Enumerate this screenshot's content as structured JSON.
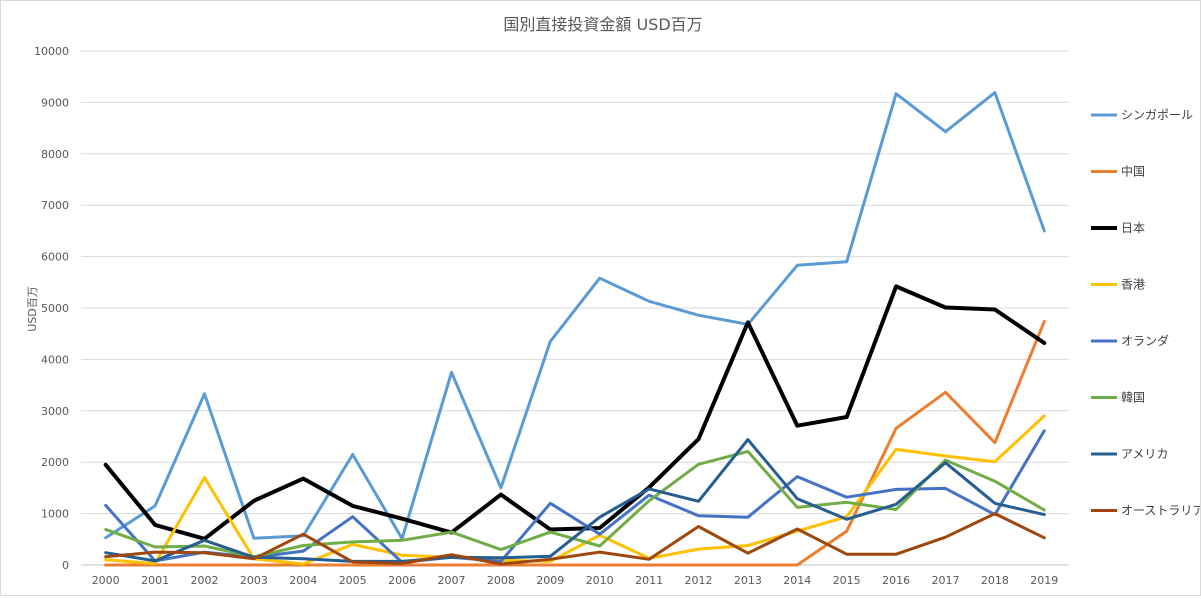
{
  "chart_data": {
    "type": "line",
    "title": "国別直接投資金額 USD百万",
    "xlabel": "",
    "ylabel": "USD百万",
    "ylim": [
      0,
      10000
    ],
    "yticks": [
      "0",
      "1000",
      "2000",
      "3000",
      "4000",
      "5000",
      "6000",
      "7000",
      "8000",
      "9000",
      "10000"
    ],
    "x": [
      "2000",
      "2001",
      "2002",
      "2003",
      "2004",
      "2005",
      "2006",
      "2007",
      "2008",
      "2009",
      "2010",
      "2011",
      "2012",
      "2013",
      "2014",
      "2015",
      "2016",
      "2017",
      "2018",
      "2019"
    ],
    "grid": true,
    "legend_position": "right",
    "series": [
      {
        "name": "シンガポール",
        "color": "#5b9bd5",
        "width": 3,
        "values": [
          530,
          1150,
          3330,
          520,
          570,
          2150,
          510,
          3750,
          1500,
          4350,
          5580,
          5130,
          4860,
          4680,
          5830,
          5900,
          9170,
          8430,
          9190,
          6500
        ]
      },
      {
        "name": "中国",
        "color": "#ed7d31",
        "width": 3,
        "values": [
          0,
          0,
          0,
          0,
          0,
          0,
          0,
          0,
          0,
          0,
          0,
          0,
          0,
          0,
          0,
          660,
          2660,
          3360,
          2380,
          4740
        ]
      },
      {
        "name": "日本",
        "color": "#000000",
        "width": 4,
        "values": [
          1950,
          780,
          510,
          1250,
          1680,
          1150,
          900,
          630,
          1370,
          690,
          720,
          1510,
          2450,
          4720,
          2710,
          2880,
          5420,
          5010,
          4970,
          4320
        ]
      },
      {
        "name": "香港",
        "color": "#ffc000",
        "width": 3,
        "values": [
          100,
          30,
          1700,
          120,
          20,
          400,
          190,
          150,
          90,
          70,
          580,
          130,
          310,
          380,
          660,
          940,
          2250,
          2120,
          2010,
          2900
        ]
      },
      {
        "name": "オランダ",
        "color": "#4472c4",
        "width": 3,
        "values": [
          1160,
          80,
          250,
          150,
          270,
          940,
          50,
          150,
          70,
          1200,
          600,
          1360,
          960,
          930,
          1720,
          1320,
          1470,
          1490,
          980,
          2610
        ]
      },
      {
        "name": "韓国",
        "color": "#70ad47",
        "width": 3,
        "values": [
          690,
          350,
          370,
          160,
          380,
          450,
          480,
          640,
          300,
          640,
          370,
          1250,
          1960,
          2210,
          1120,
          1220,
          1080,
          2040,
          1630,
          1070
        ]
      },
      {
        "name": "アメリカ",
        "color": "#255e91",
        "width": 3,
        "values": [
          240,
          80,
          480,
          150,
          120,
          70,
          70,
          150,
          140,
          170,
          930,
          1480,
          1240,
          2440,
          1290,
          890,
          1180,
          1990,
          1200,
          980
        ]
      },
      {
        "name": "オーストラリア",
        "color": "#9e480e",
        "width": 3,
        "values": [
          160,
          250,
          240,
          120,
          600,
          60,
          30,
          200,
          20,
          110,
          250,
          110,
          750,
          230,
          700,
          210,
          210,
          540,
          1000,
          530
        ]
      }
    ]
  }
}
